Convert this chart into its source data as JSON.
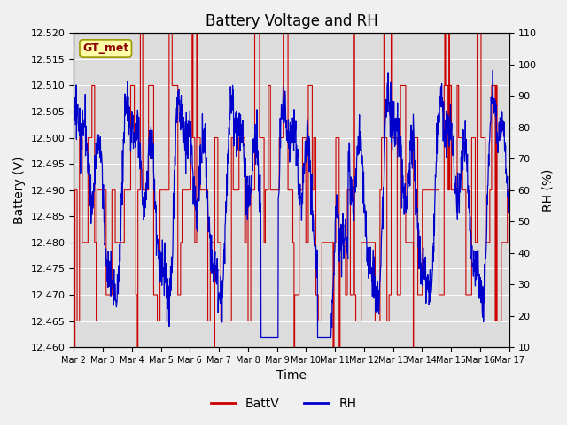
{
  "title": "Battery Voltage and RH",
  "xlabel": "Time",
  "ylabel_left": "Battery (V)",
  "ylabel_right": "RH (%)",
  "annotation": "GT_met",
  "ylim_left": [
    12.46,
    12.52
  ],
  "ylim_right": [
    10,
    110
  ],
  "yticks_left": [
    12.46,
    12.465,
    12.47,
    12.475,
    12.48,
    12.485,
    12.49,
    12.495,
    12.5,
    12.505,
    12.51,
    12.515,
    12.52
  ],
  "yticks_right": [
    10,
    20,
    30,
    40,
    50,
    60,
    70,
    80,
    90,
    100,
    110
  ],
  "xtick_labels": [
    "Mar 2",
    "Mar 3",
    "Mar 4",
    "Mar 5",
    "Mar 6",
    "Mar 7",
    "Mar 8",
    "Mar 9",
    "Mar 10",
    "Mar 11",
    "Mar 12",
    "Mar 13",
    "Mar 14",
    "Mar 15",
    "Mar 16",
    "Mar 17"
  ],
  "color_batt": "#cc0000",
  "color_rh": "#0000cc",
  "background_inner": "#dcdcdc",
  "background_outer": "#f0f0f0",
  "legend_labels": [
    "BattV",
    "RH"
  ],
  "title_fontsize": 12,
  "axis_label_fontsize": 10,
  "tick_fontsize": 8,
  "annotation_fontsize": 9
}
